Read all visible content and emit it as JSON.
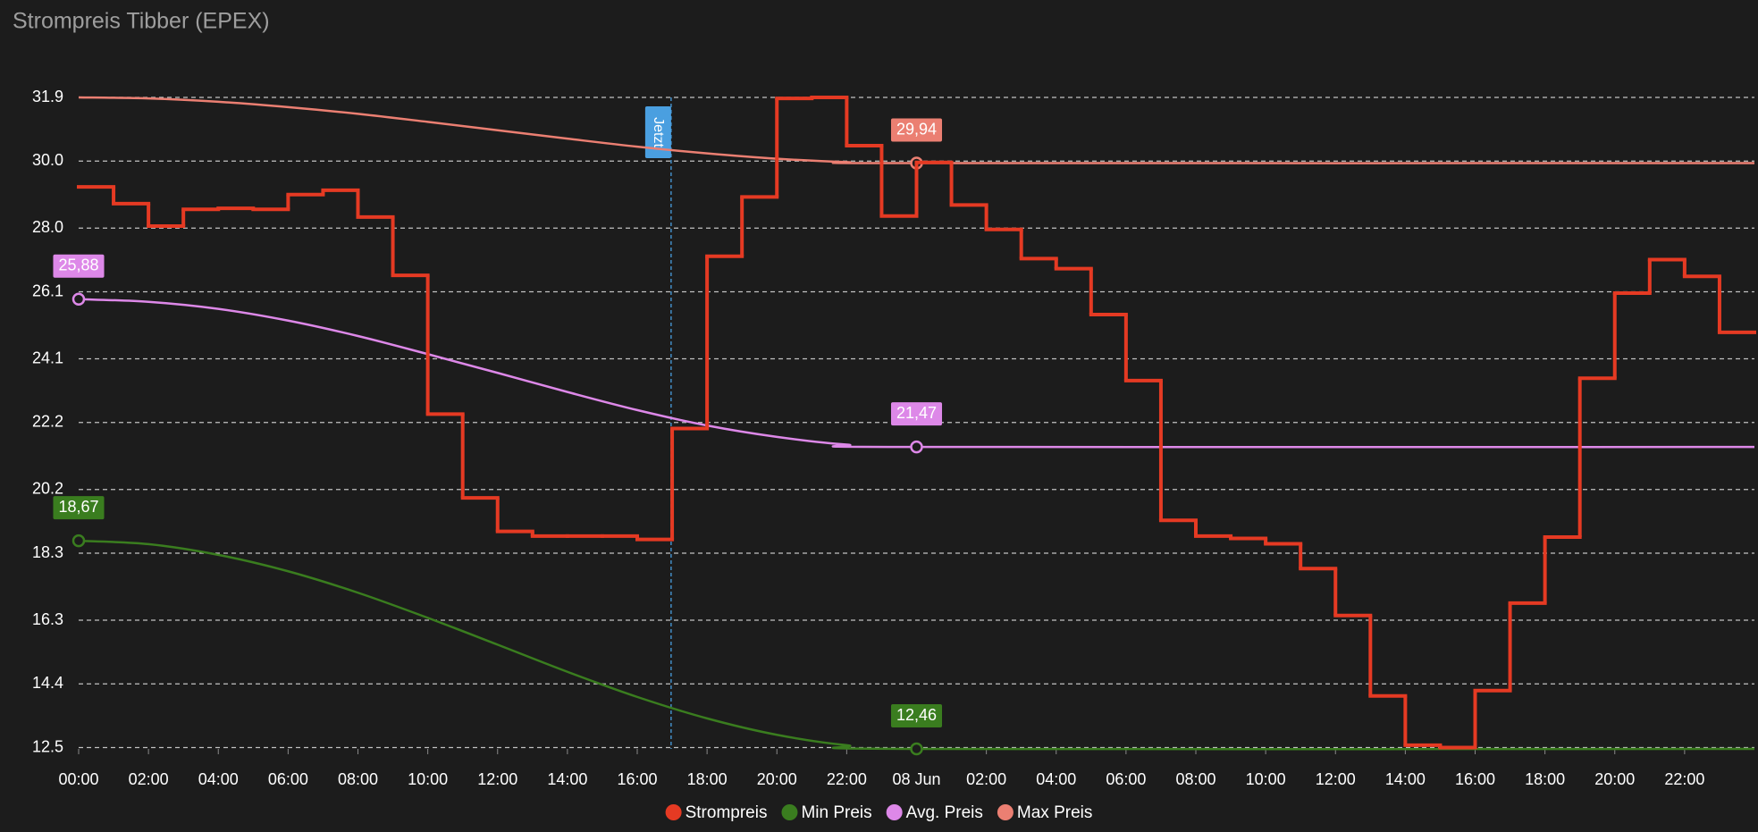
{
  "chart_data": {
    "type": "line",
    "title": "Strompreis Tibber (EPEX)",
    "background": "#1c1c1c",
    "grid": true,
    "legend": "bottom",
    "xlim": [
      0,
      48
    ],
    "xticks": [
      {
        "value": 0,
        "label": "00:00"
      },
      {
        "value": 2,
        "label": "02:00"
      },
      {
        "value": 4,
        "label": "04:00"
      },
      {
        "value": 6,
        "label": "06:00"
      },
      {
        "value": 8,
        "label": "08:00"
      },
      {
        "value": 10,
        "label": "10:00"
      },
      {
        "value": 12,
        "label": "12:00"
      },
      {
        "value": 14,
        "label": "14:00"
      },
      {
        "value": 16,
        "label": "16:00"
      },
      {
        "value": 18,
        "label": "18:00"
      },
      {
        "value": 20,
        "label": "20:00"
      },
      {
        "value": 22,
        "label": "22:00"
      },
      {
        "value": 24,
        "label": "08 Jun"
      },
      {
        "value": 26,
        "label": "02:00"
      },
      {
        "value": 28,
        "label": "04:00"
      },
      {
        "value": 30,
        "label": "06:00"
      },
      {
        "value": 32,
        "label": "08:00"
      },
      {
        "value": 34,
        "label": "10:00"
      },
      {
        "value": 36,
        "label": "12:00"
      },
      {
        "value": 38,
        "label": "14:00"
      },
      {
        "value": 40,
        "label": "16:00"
      },
      {
        "value": 42,
        "label": "18:00"
      },
      {
        "value": 44,
        "label": "20:00"
      },
      {
        "value": 46,
        "label": "22:00"
      }
    ],
    "ylim": [
      12.46,
      31.9
    ],
    "yticks": [
      12.5,
      14.4,
      16.3,
      18.3,
      20.2,
      22.2,
      24.1,
      26.1,
      {
        "value": 28,
        "label": "28.0"
      },
      {
        "value": 30,
        "label": "30.0"
      },
      31.9
    ],
    "annotation": {
      "text": "Jetzt",
      "x": 16.97,
      "color": "#4a9fe0"
    },
    "series": [
      {
        "name": "Strompreis",
        "color": "#e53a23",
        "step": true,
        "x": [
          0,
          1,
          2,
          3,
          4,
          5,
          6,
          7,
          8,
          9,
          10,
          11,
          12,
          13,
          14,
          15,
          16,
          17,
          18,
          19,
          20,
          21,
          22,
          23,
          24,
          25,
          26,
          27,
          28,
          29,
          30,
          31,
          32,
          33,
          34,
          35,
          36,
          37,
          38,
          39,
          40,
          41,
          42,
          43,
          44,
          45,
          46,
          47
        ],
        "values": [
          29.23,
          28.73,
          28.06,
          28.56,
          28.59,
          28.56,
          29.0,
          29.13,
          28.33,
          26.59,
          22.45,
          19.95,
          18.95,
          18.81,
          18.81,
          18.81,
          18.71,
          22.02,
          27.16,
          28.93,
          31.87,
          31.9,
          30.46,
          28.36,
          29.96,
          28.69,
          27.96,
          27.09,
          26.79,
          25.42,
          23.45,
          19.28,
          18.81,
          18.74,
          18.58,
          17.84,
          16.44,
          14.04,
          12.57,
          12.5,
          14.2,
          16.81,
          18.78,
          23.52,
          26.06,
          27.06,
          26.56,
          24.89
        ]
      },
      {
        "name": "Min Preis",
        "color": "#3a7d1f",
        "x": [
          0,
          2,
          4,
          6,
          8,
          10,
          12,
          14,
          16,
          18,
          20,
          22,
          24,
          48
        ],
        "values": [
          18.67,
          18.57,
          18.25,
          17.76,
          17.12,
          16.37,
          15.57,
          14.76,
          14.01,
          13.37,
          12.88,
          12.57,
          12.46,
          12.46
        ],
        "value_labels": [
          "18,67",
          null,
          null,
          null,
          null,
          null,
          null,
          null,
          null,
          null,
          null,
          null,
          "12,46",
          null
        ]
      },
      {
        "name": "Avg. Preis",
        "color": "#dd88e8",
        "x": [
          0,
          2,
          4,
          6,
          8,
          10,
          12,
          14,
          16,
          18,
          20,
          22,
          24,
          48
        ],
        "values": [
          25.88,
          25.8,
          25.59,
          25.24,
          24.78,
          24.24,
          23.68,
          23.11,
          22.57,
          22.11,
          21.77,
          21.54,
          21.47,
          21.47
        ],
        "value_labels": [
          "25,88",
          null,
          null,
          null,
          null,
          null,
          null,
          null,
          null,
          null,
          null,
          null,
          "21,47",
          null
        ]
      },
      {
        "name": "Max Preis",
        "color": "#eb7f72",
        "x": [
          0,
          2,
          4,
          6,
          8,
          10,
          12,
          14,
          16,
          18,
          20,
          22,
          24,
          48
        ],
        "values": [
          31.9,
          31.87,
          31.77,
          31.61,
          31.41,
          31.17,
          30.92,
          30.67,
          30.43,
          30.23,
          30.07,
          29.97,
          29.94,
          29.94
        ],
        "value_labels": [
          null,
          null,
          null,
          null,
          null,
          null,
          null,
          null,
          null,
          null,
          null,
          null,
          "29,94",
          null
        ]
      }
    ]
  }
}
